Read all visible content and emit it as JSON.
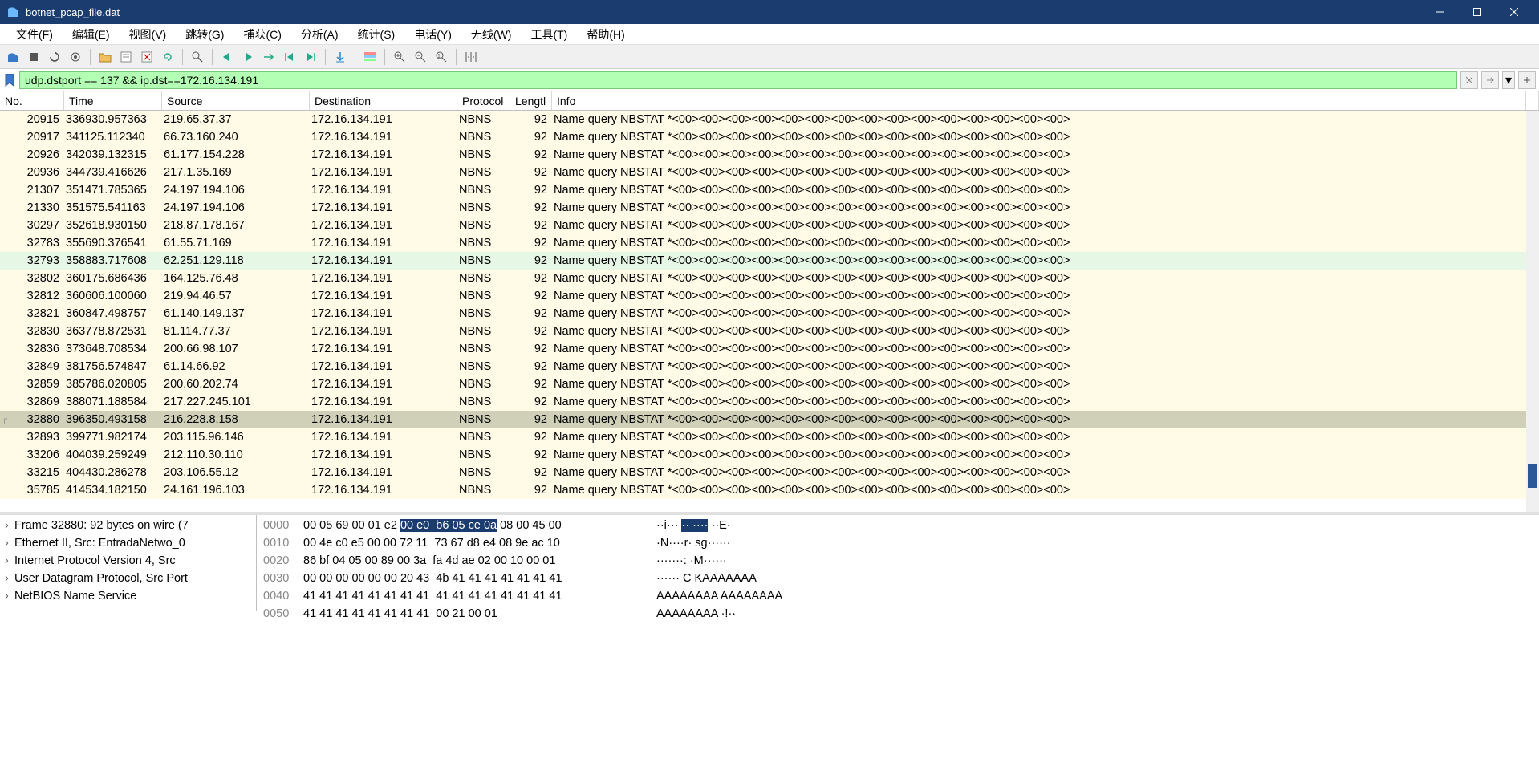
{
  "window": {
    "title": "botnet_pcap_file.dat"
  },
  "menus": [
    {
      "label": "文件(F)"
    },
    {
      "label": "编辑(E)"
    },
    {
      "label": "视图(V)"
    },
    {
      "label": "跳转(G)"
    },
    {
      "label": "捕获(C)"
    },
    {
      "label": "分析(A)"
    },
    {
      "label": "统计(S)"
    },
    {
      "label": "电话(Y)"
    },
    {
      "label": "无线(W)"
    },
    {
      "label": "工具(T)"
    },
    {
      "label": "帮助(H)"
    }
  ],
  "toolbar_icons": [
    "fin-icon",
    "stop-icon",
    "restart-icon",
    "options-icon",
    "sep",
    "open-icon",
    "save-icon",
    "close-file-icon",
    "reload-icon",
    "sep",
    "find-icon",
    "sep",
    "back-icon",
    "forward-icon",
    "goto-icon",
    "goto-first-icon",
    "goto-last-icon",
    "sep",
    "autoscroll-icon",
    "sep",
    "colorize-icon",
    "sep",
    "zoom-in-icon",
    "zoom-out-icon",
    "zoom-reset-icon",
    "sep",
    "resize-cols-icon"
  ],
  "filter": {
    "value": "udp.dstport == 137 && ip.dst==172.16.134.191",
    "valid_bg": "#b3ffb3"
  },
  "columns": [
    {
      "key": "no",
      "label": "No."
    },
    {
      "key": "time",
      "label": "Time"
    },
    {
      "key": "src",
      "label": "Source"
    },
    {
      "key": "dst",
      "label": "Destination"
    },
    {
      "key": "proto",
      "label": "Protocol"
    },
    {
      "key": "len",
      "label": "Lengtl"
    },
    {
      "key": "info",
      "label": "Info"
    }
  ],
  "info_text": "Name query NBSTAT *<00><00><00><00><00><00><00><00><00><00><00><00><00><00><00>",
  "dst_common": "172.16.134.191",
  "proto_common": "NBNS",
  "len_common": "92",
  "rows": [
    {
      "no": "20915",
      "time": "336930.957363",
      "src": "219.65.37.37"
    },
    {
      "no": "20917",
      "time": "341125.112340",
      "src": "66.73.160.240"
    },
    {
      "no": "20926",
      "time": "342039.132315",
      "src": "61.177.154.228"
    },
    {
      "no": "20936",
      "time": "344739.416626",
      "src": "217.1.35.169"
    },
    {
      "no": "21307",
      "time": "351471.785365",
      "src": "24.197.194.106"
    },
    {
      "no": "21330",
      "time": "351575.541163",
      "src": "24.197.194.106"
    },
    {
      "no": "30297",
      "time": "352618.930150",
      "src": "218.87.178.167"
    },
    {
      "no": "32783",
      "time": "355690.376541",
      "src": "61.55.71.169"
    },
    {
      "no": "32793",
      "time": "358883.717608",
      "src": "62.251.129.118",
      "hover": true
    },
    {
      "no": "32802",
      "time": "360175.686436",
      "src": "164.125.76.48"
    },
    {
      "no": "32812",
      "time": "360606.100060",
      "src": "219.94.46.57"
    },
    {
      "no": "32821",
      "time": "360847.498757",
      "src": "61.140.149.137"
    },
    {
      "no": "32830",
      "time": "363778.872531",
      "src": "81.114.77.37"
    },
    {
      "no": "32836",
      "time": "373648.708534",
      "src": "200.66.98.107"
    },
    {
      "no": "32849",
      "time": "381756.574847",
      "src": "61.14.66.92"
    },
    {
      "no": "32859",
      "time": "385786.020805",
      "src": "200.60.202.74"
    },
    {
      "no": "32869",
      "time": "388071.188584",
      "src": "217.227.245.101"
    },
    {
      "no": "32880",
      "time": "396350.493158",
      "src": "216.228.8.158",
      "selected": true,
      "mark": true
    },
    {
      "no": "32893",
      "time": "399771.982174",
      "src": "203.115.96.146"
    },
    {
      "no": "33206",
      "time": "404039.259249",
      "src": "212.110.30.110"
    },
    {
      "no": "33215",
      "time": "404430.286278",
      "src": "203.106.55.12"
    },
    {
      "no": "35785",
      "time": "414534.182150",
      "src": "24.161.196.103"
    }
  ],
  "tree": [
    {
      "label": "Frame 32880: 92 bytes on wire (7"
    },
    {
      "label": "Ethernet II, Src: EntradaNetwo_0"
    },
    {
      "label": "Internet Protocol Version 4, Src"
    },
    {
      "label": "User Datagram Protocol, Src Port"
    },
    {
      "label": "NetBIOS Name Service"
    }
  ],
  "hex": [
    {
      "off": "0000",
      "b1": "00 05 69 00 01 e2 ",
      "hlb": "00 e0  b6 05 ce 0a",
      "b2": " 08 00 45 00",
      "a1": "··i··· ",
      "hla": "·· ····",
      "a2": " ··E·"
    },
    {
      "off": "0010",
      "b1": "00 4e c0 e5 00 00 72 11  73 67 d8 e4 08 9e ac 10",
      "a1": "·N····r· sg······"
    },
    {
      "off": "0020",
      "b1": "86 bf 04 05 00 89 00 3a  fa 4d ae 02 00 10 00 01",
      "a1": "·······: ·M······"
    },
    {
      "off": "0030",
      "b1": "00 00 00 00 00 00 20 43  4b 41 41 41 41 41 41 41",
      "a1": "······ C KAAAAAAA"
    },
    {
      "off": "0040",
      "b1": "41 41 41 41 41 41 41 41  41 41 41 41 41 41 41 41",
      "a1": "AAAAAAAA AAAAAAAA"
    },
    {
      "off": "0050",
      "b1": "41 41 41 41 41 41 41 41  00 21 00 01",
      "a1": "AAAAAAAA ·!··"
    }
  ],
  "colors": {
    "row_bg": "#fffbe6",
    "row_hover_bg": "#e6f7e6",
    "row_sel_bg": "#d0d0b8",
    "titlebar_bg": "#1a3c6e",
    "highlight_bg": "#1a3c6e"
  },
  "scroll_thumb": {
    "top_pct": 88,
    "height_pct": 6
  }
}
